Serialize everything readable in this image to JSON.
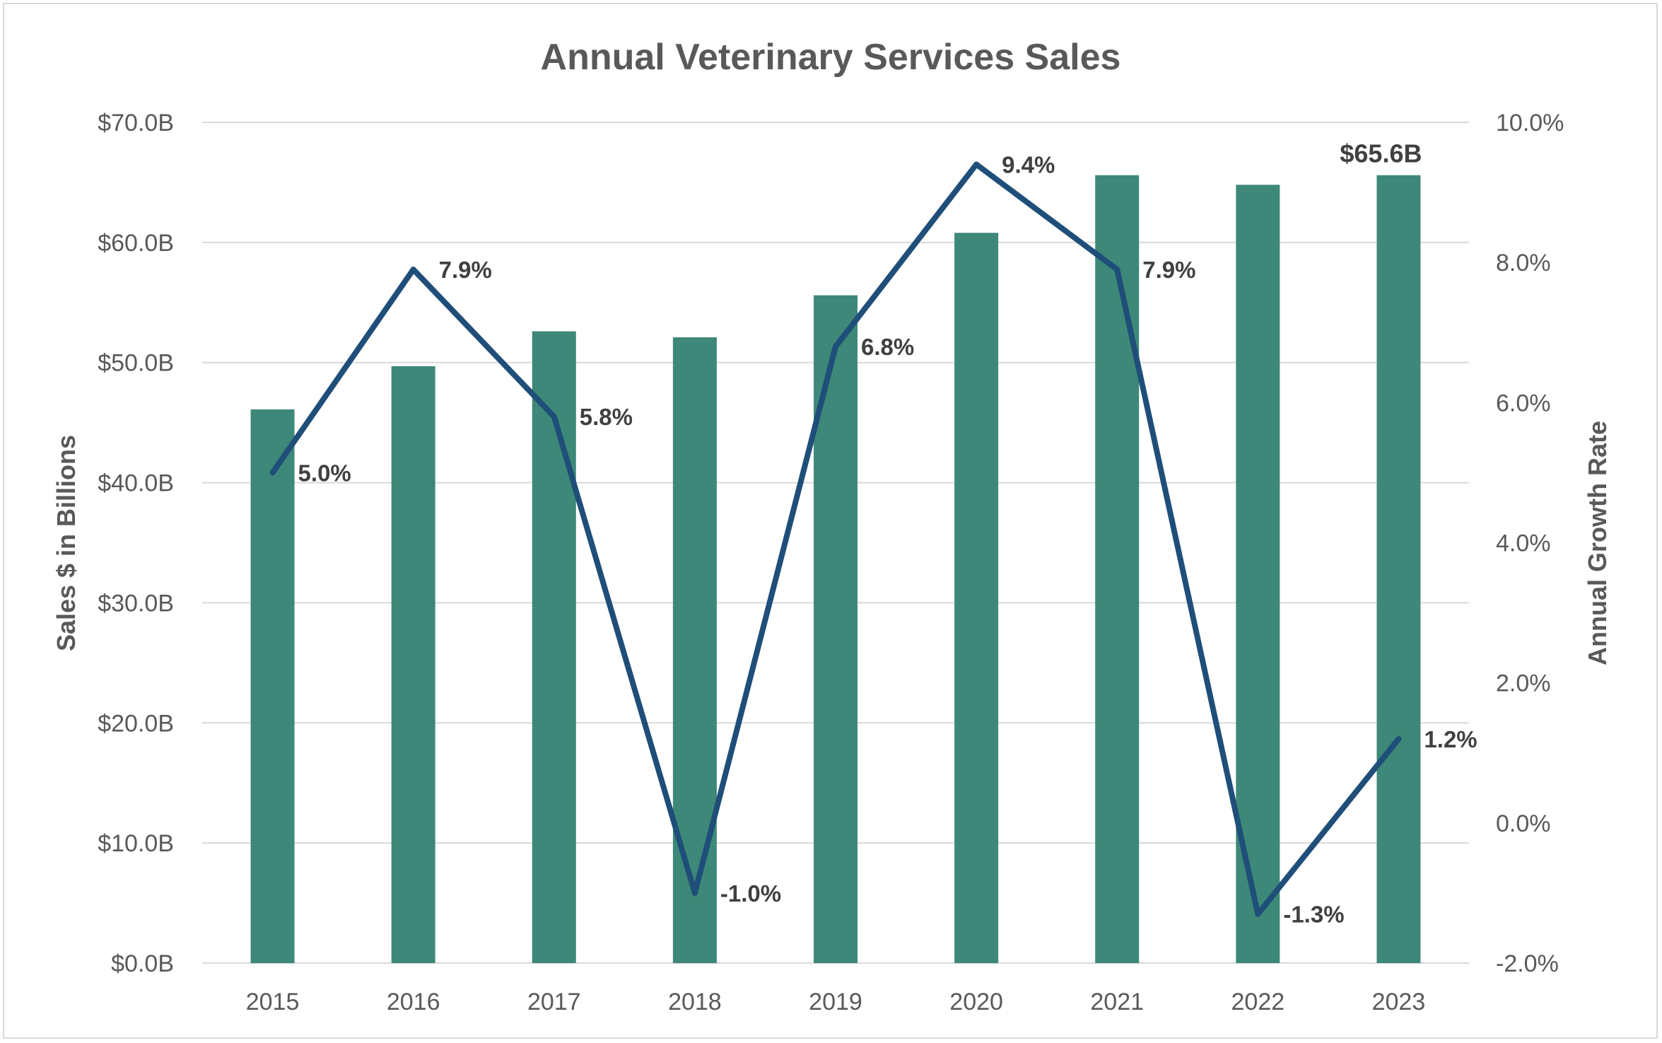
{
  "chart_data": {
    "type": "bar",
    "title": "Annual Veterinary Services Sales",
    "categories": [
      "2015",
      "2016",
      "2017",
      "2018",
      "2019",
      "2020",
      "2021",
      "2022",
      "2023"
    ],
    "series": [
      {
        "name": "",
        "type": "bar",
        "axis": "left",
        "values": [
          46.1,
          49.7,
          52.6,
          52.1,
          55.6,
          60.8,
          65.6,
          64.8,
          65.6
        ],
        "color": "#3d8878",
        "data_labels": [
          "",
          "",
          "",
          "",
          "",
          "",
          "",
          "",
          "$65.6B"
        ]
      },
      {
        "name": "",
        "type": "line",
        "axis": "right",
        "values": [
          5.0,
          7.9,
          5.8,
          -1.0,
          6.8,
          9.4,
          7.9,
          -1.3,
          1.2
        ],
        "color": "#1f4e79",
        "data_labels": [
          "5.0%",
          "7.9%",
          "5.8%",
          "-1.0%",
          "6.8%",
          "9.4%",
          "7.9%",
          "-1.3%",
          "1.2%"
        ]
      }
    ],
    "ylabel": "Sales $ in Billions",
    "ylabel_right": "Annual Growth Rate",
    "ylim": [
      0,
      70
    ],
    "ylim_right": [
      -2,
      10
    ],
    "yticks": [
      "$0.0B",
      "$10.0B",
      "$20.0B",
      "$30.0B",
      "$40.0B",
      "$50.0B",
      "$60.0B",
      "$70.0B"
    ],
    "yticks_right": [
      "-2.0%",
      "0.0%",
      "2.0%",
      "4.0%",
      "6.0%",
      "8.0%",
      "10.0%"
    ],
    "grid": true,
    "gridline_color": "#d9d9d9"
  }
}
